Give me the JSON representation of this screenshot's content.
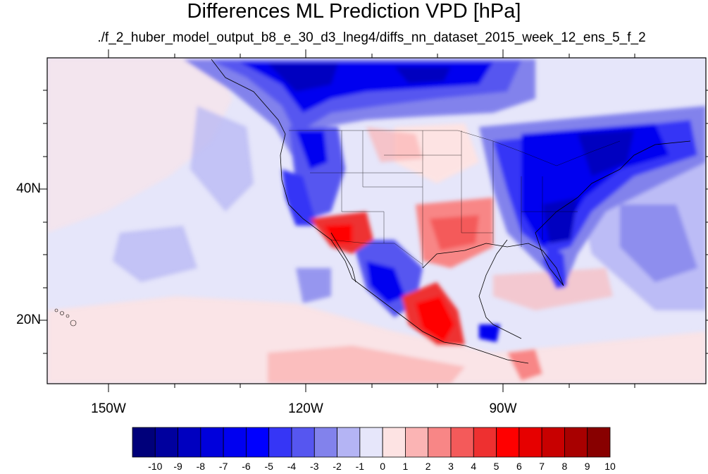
{
  "title": "Differences ML Prediction VPD [hPa]",
  "subtitle": "./f_2_huber_model_output_b8_e_30_d3_lneg4/diffs_nn_dataset_2015_week_12_ens_5_f_2",
  "y_axis": {
    "ticks": [
      "40N",
      "20N"
    ]
  },
  "x_axis": {
    "ticks": [
      "150W",
      "120W",
      "90W"
    ]
  },
  "extent": {
    "lon": [
      -160,
      -62
    ],
    "lat": [
      11,
      60
    ]
  },
  "colorbar": {
    "labels": [
      "-10",
      "-9",
      "-8",
      "-7",
      "-6",
      "-5",
      "-4",
      "-3",
      "-2",
      "-1",
      "0",
      "1",
      "2",
      "3",
      "4",
      "5",
      "6",
      "7",
      "8",
      "9",
      "10"
    ],
    "colors": [
      "#00007a",
      "#00009e",
      "#0000c0",
      "#0000dc",
      "#0000f0",
      "#0000ff",
      "#3636f6",
      "#5656f0",
      "#8282ec",
      "#b4b4f4",
      "#e6e6fa",
      "#fde3e3",
      "#fbb4b4",
      "#f88686",
      "#f45a5a",
      "#ee3030",
      "#ff0000",
      "#e60000",
      "#c80000",
      "#a80000",
      "#880000"
    ]
  }
}
